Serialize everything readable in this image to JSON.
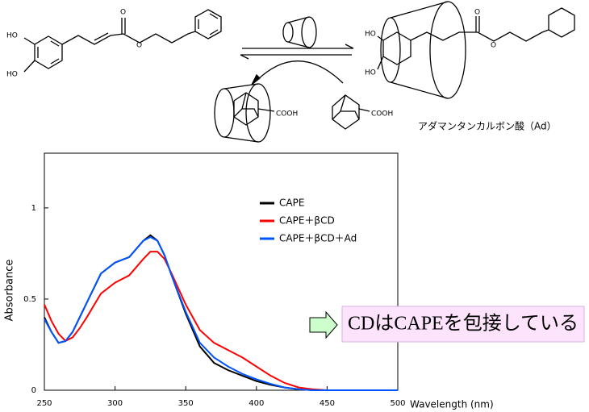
{
  "scheme": {
    "atoms": [
      "HO",
      "HO",
      "O",
      "O",
      "HO",
      "HO",
      "O",
      "O",
      "COOH",
      "COOH"
    ],
    "caption": "アダマンタンカルボン酸（Ad）"
  },
  "chart_data": {
    "type": "line",
    "x_label": "Wavelength (nm)",
    "y_label": "Absorbance",
    "annotation": "CDはCAPEを包接している",
    "x": [
      250,
      255,
      260,
      265,
      270,
      275,
      280,
      290,
      300,
      310,
      320,
      325,
      330,
      335,
      340,
      350,
      360,
      370,
      380,
      390,
      400,
      410,
      420,
      430,
      440,
      450,
      475,
      500
    ],
    "series": [
      {
        "name": "CAPE",
        "color": "#000000",
        "values": [
          0.4,
          0.32,
          0.26,
          0.27,
          0.32,
          0.4,
          0.48,
          0.64,
          0.7,
          0.73,
          0.82,
          0.85,
          0.82,
          0.74,
          0.63,
          0.42,
          0.24,
          0.15,
          0.11,
          0.08,
          0.05,
          0.03,
          0.015,
          0.005,
          0,
          0,
          0,
          0
        ]
      },
      {
        "name": "CAPE＋βCD",
        "color": "#ff0000",
        "values": [
          0.47,
          0.38,
          0.31,
          0.27,
          0.29,
          0.34,
          0.4,
          0.53,
          0.59,
          0.63,
          0.72,
          0.76,
          0.76,
          0.72,
          0.64,
          0.47,
          0.33,
          0.26,
          0.22,
          0.18,
          0.13,
          0.08,
          0.04,
          0.015,
          0.005,
          0,
          0,
          0
        ]
      },
      {
        "name": "CAPE＋βCD＋Ad",
        "color": "#0055ff",
        "values": [
          0.39,
          0.32,
          0.26,
          0.27,
          0.32,
          0.4,
          0.48,
          0.64,
          0.7,
          0.73,
          0.82,
          0.84,
          0.82,
          0.74,
          0.63,
          0.43,
          0.26,
          0.18,
          0.13,
          0.09,
          0.06,
          0.035,
          0.015,
          0.005,
          0,
          0,
          0,
          0
        ]
      }
    ],
    "xlim": [
      250,
      500
    ],
    "xticks": [
      250,
      300,
      350,
      400,
      450,
      500
    ],
    "ylim": [
      0,
      1.3
    ],
    "yticks": [
      0,
      0.5,
      1
    ],
    "legend": "upper right"
  }
}
